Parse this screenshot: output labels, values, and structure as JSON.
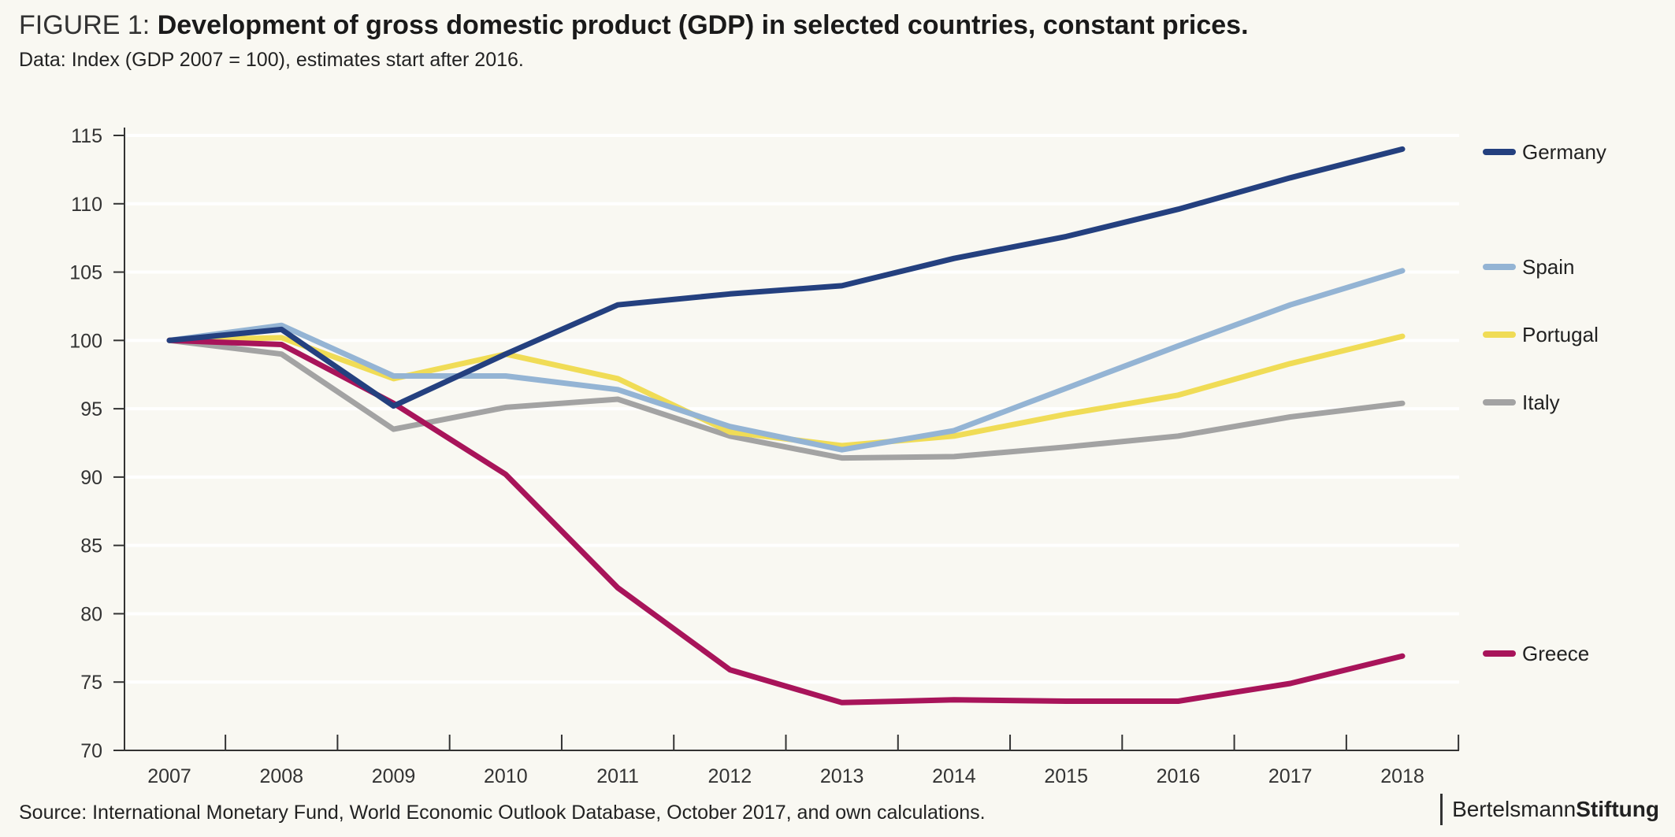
{
  "header": {
    "figure_prefix": "FIGURE 1:",
    "title": "Development of gross domestic product (GDP) in selected countries, constant prices.",
    "subtitle": "Data: Index (GDP 2007 = 100), estimates start after 2016."
  },
  "footer": {
    "source": "Source: International Monetary Fund, World Economic Outlook Database, October 2017, and own calculations.",
    "brand_part1": "Bertelsmann",
    "brand_part2": "Stiftung"
  },
  "chart_data": {
    "type": "line",
    "title": "Development of gross domestic product (GDP) in selected countries, constant prices.",
    "x": [
      2007,
      2008,
      2009,
      2010,
      2011,
      2012,
      2013,
      2014,
      2015,
      2016,
      2017,
      2018
    ],
    "xlabel": "",
    "ylabel": "",
    "ylim": [
      70,
      115
    ],
    "yticks": [
      70,
      75,
      80,
      85,
      90,
      95,
      100,
      105,
      110,
      115
    ],
    "grid": true,
    "legend_placement": "right",
    "series": [
      {
        "name": "Germany",
        "color": "#24407f",
        "values": [
          100,
          100.8,
          95.2,
          99.0,
          102.6,
          103.4,
          104.0,
          106.0,
          107.6,
          109.6,
          111.9,
          114.0
        ]
      },
      {
        "name": "Spain",
        "color": "#94b4d4",
        "values": [
          100,
          101.1,
          97.4,
          97.4,
          96.4,
          93.7,
          92.0,
          93.4,
          96.5,
          99.6,
          102.6,
          105.1
        ]
      },
      {
        "name": "Portugal",
        "color": "#f0dc56",
        "values": [
          100,
          100.2,
          97.2,
          99.0,
          97.2,
          93.3,
          92.3,
          93.0,
          94.6,
          96.0,
          98.3,
          100.3
        ]
      },
      {
        "name": "Italy",
        "color": "#a3a3a3",
        "values": [
          100,
          99.0,
          93.5,
          95.1,
          95.7,
          93.0,
          91.4,
          91.5,
          92.2,
          93.0,
          94.4,
          95.4
        ]
      },
      {
        "name": "Greece",
        "color": "#a8145a",
        "values": [
          100,
          99.7,
          95.4,
          90.2,
          81.9,
          75.9,
          73.5,
          73.7,
          73.6,
          73.6,
          74.9,
          76.9
        ]
      }
    ]
  }
}
